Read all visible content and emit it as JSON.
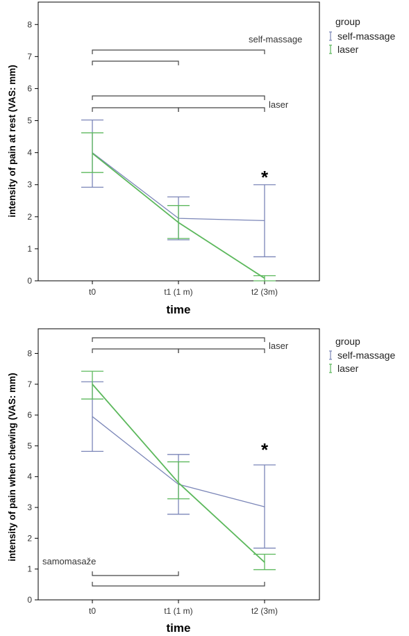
{
  "chart_data": [
    {
      "type": "line",
      "ylabel": "intensity of pain at rest (VAS: mm)",
      "xlabel": "time",
      "categories": [
        "t0",
        "t1 (1 m)",
        "t2 (3m)"
      ],
      "ylim": [
        0,
        8.7
      ],
      "yticks": [
        0,
        1,
        2,
        3,
        4,
        5,
        6,
        7,
        8
      ],
      "legend": {
        "title": "group",
        "position": "top-right-outside"
      },
      "series": [
        {
          "name": "self-massage",
          "color": "#7b86b8",
          "values": [
            4.0,
            1.95,
            1.88
          ],
          "error_low": [
            2.92,
            1.28,
            0.75
          ],
          "error_high": [
            5.02,
            2.62,
            3.0
          ]
        },
        {
          "name": "laser",
          "color": "#5cb85c",
          "values": [
            3.98,
            1.82,
            0.08
          ],
          "error_low": [
            3.38,
            1.32,
            0.0
          ],
          "error_high": [
            4.62,
            2.35,
            0.16
          ]
        }
      ],
      "annotations": {
        "star": "*",
        "labels": [
          "self-massage",
          "laser"
        ],
        "brackets_upper_label": "self-massage",
        "brackets_lower_label": "laser"
      }
    },
    {
      "type": "line",
      "ylabel": "intensity of pain when chewing (VAS: mm)",
      "xlabel": "time",
      "categories": [
        "t0",
        "t1 (1 m)",
        "t2 (3m)"
      ],
      "ylim": [
        0,
        8.8
      ],
      "yticks": [
        0,
        1,
        2,
        3,
        4,
        5,
        6,
        7,
        8
      ],
      "legend": {
        "title": "group",
        "position": "top-right-outside"
      },
      "series": [
        {
          "name": "self-massage",
          "color": "#7b86b8",
          "values": [
            5.95,
            3.75,
            3.02
          ],
          "error_low": [
            4.82,
            2.78,
            1.68
          ],
          "error_high": [
            7.08,
            4.72,
            4.38
          ]
        },
        {
          "name": "laser",
          "color": "#5cb85c",
          "values": [
            7.0,
            3.8,
            1.22
          ],
          "error_low": [
            6.52,
            3.28,
            0.98
          ],
          "error_high": [
            7.42,
            4.48,
            1.48
          ]
        }
      ],
      "annotations": {
        "star": "*",
        "labels": [
          "laser",
          "samomasaže"
        ]
      }
    }
  ]
}
